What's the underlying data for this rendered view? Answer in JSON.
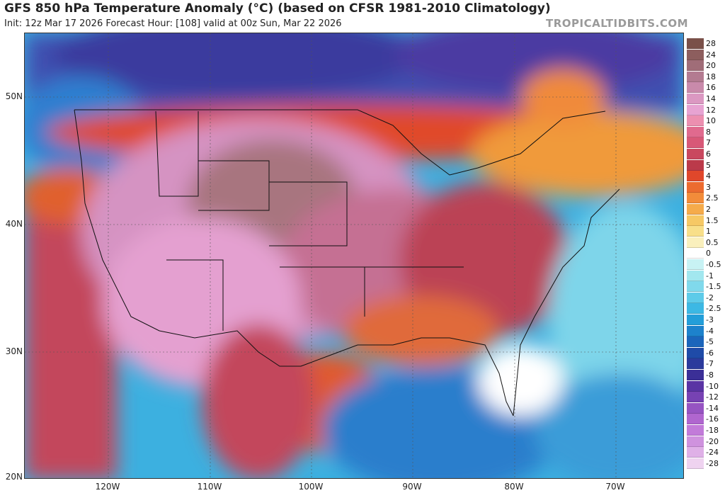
{
  "header": {
    "title": "GFS 850 hPa Temperature Anomaly (°C) (based on CFSR 1981-2010 Climatology)",
    "subtitle": "Init: 12z Mar 17 2026   Forecast Hour: [108]   valid at 00z Sun, Mar 22 2026",
    "watermark": "TROPICALTIDBITS.COM"
  },
  "axes": {
    "latitude_labels": [
      "50N",
      "40N",
      "30N",
      "20N"
    ],
    "longitude_labels": [
      "120W",
      "110W",
      "100W",
      "90W",
      "80W",
      "70W"
    ]
  },
  "colorbar": {
    "labels": [
      "28",
      "24",
      "20",
      "18",
      "16",
      "14",
      "12",
      "10",
      "8",
      "7",
      "6",
      "5",
      "4",
      "3",
      "2.5",
      "2",
      "1.5",
      "1",
      "0.5",
      "0",
      "-0.5",
      "-1",
      "-1.5",
      "-2",
      "-2.5",
      "-3",
      "-4",
      "-5",
      "-6",
      "-7",
      "-8",
      "-10",
      "-12",
      "-14",
      "-16",
      "-18",
      "-20",
      "-24",
      "-28"
    ],
    "colors": [
      "#7a5049",
      "#8d5e5e",
      "#a06d78",
      "#b37b91",
      "#c98aab",
      "#db98c2",
      "#e7a3d2",
      "#ec8fb0",
      "#e06a8e",
      "#d85877",
      "#c9485f",
      "#bb3a4a",
      "#e0472b",
      "#ec6b2f",
      "#f28c3a",
      "#f5ab4b",
      "#f6c865",
      "#f8df8a",
      "#faf0bd",
      "#ffffff",
      "#c8f2f4",
      "#a2e7ef",
      "#80d9ec",
      "#5ecbe9",
      "#3cb8e4",
      "#239ed9",
      "#1d82cc",
      "#1b65bb",
      "#1f4ba8",
      "#2b3a9c",
      "#3b2f97",
      "#5a34a4",
      "#7742b3",
      "#9654c2",
      "#b066cf",
      "#c27bd9",
      "#cf92de",
      "#dfb0e7",
      "#efd3f0"
    ]
  }
}
